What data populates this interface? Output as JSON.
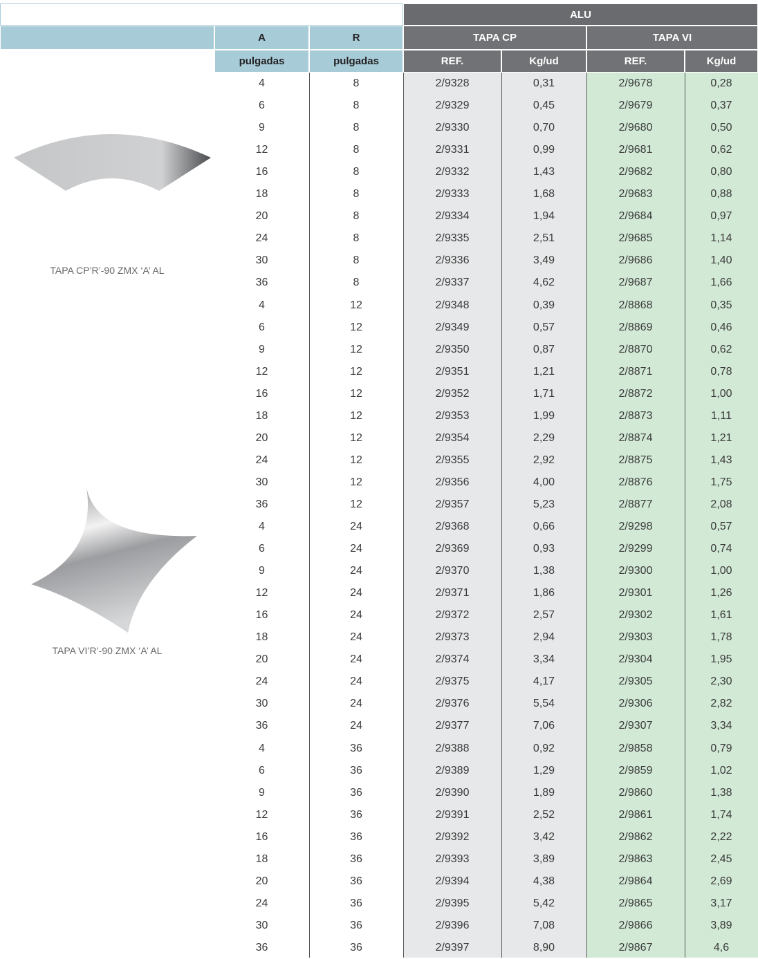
{
  "header": {
    "group": "ALU",
    "columns": [
      "A",
      "R"
    ],
    "units": [
      "pulgadas",
      "pulgadas"
    ],
    "subgroups": [
      "TAPA CP",
      "TAPA VI"
    ],
    "subcolumns": [
      "REF.",
      "Kg/ud",
      "REF.",
      "Kg/ud"
    ]
  },
  "products": [
    {
      "caption": "TAPA CP’R’-90 ZMX ‘A’ AL"
    },
    {
      "caption": "TAPA VI’R’-90 ZMX ‘A’ AL"
    }
  ],
  "table": {
    "rows": [
      [
        "4",
        "8",
        "2/9328",
        "0,31",
        "2/9678",
        "0,28"
      ],
      [
        "6",
        "8",
        "2/9329",
        "0,45",
        "2/9679",
        "0,37"
      ],
      [
        "9",
        "8",
        "2/9330",
        "0,70",
        "2/9680",
        "0,50"
      ],
      [
        "12",
        "8",
        "2/9331",
        "0,99",
        "2/9681",
        "0,62"
      ],
      [
        "16",
        "8",
        "2/9332",
        "1,43",
        "2/9682",
        "0,80"
      ],
      [
        "18",
        "8",
        "2/9333",
        "1,68",
        "2/9683",
        "0,88"
      ],
      [
        "20",
        "8",
        "2/9334",
        "1,94",
        "2/9684",
        "0,97"
      ],
      [
        "24",
        "8",
        "2/9335",
        "2,51",
        "2/9685",
        "1,14"
      ],
      [
        "30",
        "8",
        "2/9336",
        "3,49",
        "2/9686",
        "1,40"
      ],
      [
        "36",
        "8",
        "2/9337",
        "4,62",
        "2/9687",
        "1,66"
      ],
      [
        "4",
        "12",
        "2/9348",
        "0,39",
        "2/8868",
        "0,35"
      ],
      [
        "6",
        "12",
        "2/9349",
        "0,57",
        "2/8869",
        "0,46"
      ],
      [
        "9",
        "12",
        "2/9350",
        "0,87",
        "2/8870",
        "0,62"
      ],
      [
        "12",
        "12",
        "2/9351",
        "1,21",
        "2/8871",
        "0,78"
      ],
      [
        "16",
        "12",
        "2/9352",
        "1,71",
        "2/8872",
        "1,00"
      ],
      [
        "18",
        "12",
        "2/9353",
        "1,99",
        "2/8873",
        "1,11"
      ],
      [
        "20",
        "12",
        "2/9354",
        "2,29",
        "2/8874",
        "1,21"
      ],
      [
        "24",
        "12",
        "2/9355",
        "2,92",
        "2/8875",
        "1,43"
      ],
      [
        "30",
        "12",
        "2/9356",
        "4,00",
        "2/8876",
        "1,75"
      ],
      [
        "36",
        "12",
        "2/9357",
        "5,23",
        "2/8877",
        "2,08"
      ],
      [
        "4",
        "24",
        "2/9368",
        "0,66",
        "2/9298",
        "0,57"
      ],
      [
        "6",
        "24",
        "2/9369",
        "0,93",
        "2/9299",
        "0,74"
      ],
      [
        "9",
        "24",
        "2/9370",
        "1,38",
        "2/9300",
        "1,00"
      ],
      [
        "12",
        "24",
        "2/9371",
        "1,86",
        "2/9301",
        "1,26"
      ],
      [
        "16",
        "24",
        "2/9372",
        "2,57",
        "2/9302",
        "1,61"
      ],
      [
        "18",
        "24",
        "2/9373",
        "2,94",
        "2/9303",
        "1,78"
      ],
      [
        "20",
        "24",
        "2/9374",
        "3,34",
        "2/9304",
        "1,95"
      ],
      [
        "24",
        "24",
        "2/9375",
        "4,17",
        "2/9305",
        "2,30"
      ],
      [
        "30",
        "24",
        "2/9376",
        "5,54",
        "2/9306",
        "2,82"
      ],
      [
        "36",
        "24",
        "2/9377",
        "7,06",
        "2/9307",
        "3,34"
      ],
      [
        "4",
        "36",
        "2/9388",
        "0,92",
        "2/9858",
        "0,79"
      ],
      [
        "6",
        "36",
        "2/9389",
        "1,29",
        "2/9859",
        "1,02"
      ],
      [
        "9",
        "36",
        "2/9390",
        "1,89",
        "2/9860",
        "1,38"
      ],
      [
        "12",
        "36",
        "2/9391",
        "2,52",
        "2/9861",
        "1,74"
      ],
      [
        "16",
        "36",
        "2/9392",
        "3,42",
        "2/9862",
        "2,22"
      ],
      [
        "18",
        "36",
        "2/9393",
        "3,89",
        "2/9863",
        "2,45"
      ],
      [
        "20",
        "36",
        "2/9394",
        "4,38",
        "2/9864",
        "2,69"
      ],
      [
        "24",
        "36",
        "2/9395",
        "5,42",
        "2/9865",
        "3,17"
      ],
      [
        "30",
        "36",
        "2/9396",
        "7,08",
        "2/9866",
        "3,89"
      ],
      [
        "36",
        "36",
        "2/9397",
        "8,90",
        "2/9867",
        "4,6"
      ]
    ]
  }
}
